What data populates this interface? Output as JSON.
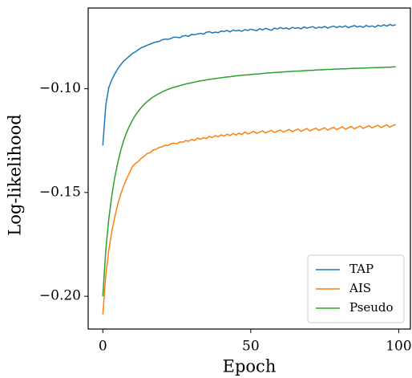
{
  "chart_data": {
    "type": "line",
    "xlabel": "Epoch",
    "ylabel": "Log-likelihood",
    "x": [
      0,
      1,
      2,
      3,
      4,
      5,
      6,
      7,
      8,
      9,
      10,
      11,
      12,
      13,
      14,
      15,
      16,
      17,
      18,
      19,
      20,
      21,
      22,
      23,
      24,
      25,
      26,
      27,
      28,
      29,
      30,
      31,
      32,
      33,
      34,
      35,
      36,
      37,
      38,
      39,
      40,
      41,
      42,
      43,
      44,
      45,
      46,
      47,
      48,
      49,
      50,
      51,
      52,
      53,
      54,
      55,
      56,
      57,
      58,
      59,
      60,
      61,
      62,
      63,
      64,
      65,
      66,
      67,
      68,
      69,
      70,
      71,
      72,
      73,
      74,
      75,
      76,
      77,
      78,
      79,
      80,
      81,
      82,
      83,
      84,
      85,
      86,
      87,
      88,
      89,
      90,
      91,
      92,
      93,
      94,
      95,
      96,
      97,
      98,
      99
    ],
    "series": [
      {
        "name": "TAP",
        "color": "#1f77b4",
        "values": [
          -0.1273,
          -0.108,
          -0.0995,
          -0.0958,
          -0.093,
          -0.0905,
          -0.0885,
          -0.0868,
          -0.0855,
          -0.0843,
          -0.083,
          -0.0822,
          -0.0812,
          -0.0802,
          -0.0797,
          -0.079,
          -0.0785,
          -0.0779,
          -0.0775,
          -0.0772,
          -0.0764,
          -0.0761,
          -0.0762,
          -0.0758,
          -0.0751,
          -0.0752,
          -0.0754,
          -0.0746,
          -0.0744,
          -0.0747,
          -0.0738,
          -0.074,
          -0.0736,
          -0.0733,
          -0.0737,
          -0.0728,
          -0.0725,
          -0.0731,
          -0.0727,
          -0.073,
          -0.0722,
          -0.0724,
          -0.0719,
          -0.0726,
          -0.0717,
          -0.0721,
          -0.0718,
          -0.0723,
          -0.0715,
          -0.0719,
          -0.0713,
          -0.0717,
          -0.072,
          -0.0711,
          -0.0716,
          -0.0709,
          -0.0714,
          -0.0718,
          -0.0708,
          -0.0712,
          -0.0705,
          -0.0711,
          -0.0707,
          -0.0713,
          -0.0704,
          -0.0709,
          -0.0706,
          -0.0711,
          -0.0702,
          -0.0708,
          -0.0704,
          -0.0701,
          -0.0709,
          -0.0703,
          -0.0706,
          -0.07,
          -0.0708,
          -0.0702,
          -0.0698,
          -0.0705,
          -0.0699,
          -0.0703,
          -0.0697,
          -0.0706,
          -0.07,
          -0.0696,
          -0.0702,
          -0.0698,
          -0.0704,
          -0.0695,
          -0.0701,
          -0.0697,
          -0.0703,
          -0.0694,
          -0.0699,
          -0.0692,
          -0.0698,
          -0.069,
          -0.0696,
          -0.0691
        ]
      },
      {
        "name": "AIS",
        "color": "#ff7f0e",
        "values": [
          -0.2088,
          -0.19,
          -0.178,
          -0.169,
          -0.162,
          -0.156,
          -0.151,
          -0.147,
          -0.1435,
          -0.1405,
          -0.1375,
          -0.136,
          -0.135,
          -0.1335,
          -0.1325,
          -0.1312,
          -0.1308,
          -0.1295,
          -0.1292,
          -0.1283,
          -0.128,
          -0.1272,
          -0.1274,
          -0.1265,
          -0.1262,
          -0.1266,
          -0.1256,
          -0.1258,
          -0.125,
          -0.1253,
          -0.1244,
          -0.1249,
          -0.1238,
          -0.1243,
          -0.1236,
          -0.124,
          -0.123,
          -0.1235,
          -0.1226,
          -0.1232,
          -0.1222,
          -0.1228,
          -0.1219,
          -0.1225,
          -0.1216,
          -0.1223,
          -0.1214,
          -0.1221,
          -0.1208,
          -0.1218,
          -0.1212,
          -0.1205,
          -0.1215,
          -0.1209,
          -0.1203,
          -0.1213,
          -0.1206,
          -0.1201,
          -0.1211,
          -0.1204,
          -0.1199,
          -0.1209,
          -0.1202,
          -0.1196,
          -0.1207,
          -0.12,
          -0.1194,
          -0.1205,
          -0.1198,
          -0.1192,
          -0.1203,
          -0.1196,
          -0.119,
          -0.1201,
          -0.1194,
          -0.1188,
          -0.1199,
          -0.1192,
          -0.1186,
          -0.1197,
          -0.119,
          -0.1184,
          -0.1195,
          -0.1188,
          -0.1182,
          -0.1193,
          -0.1186,
          -0.118,
          -0.1191,
          -0.1184,
          -0.1178,
          -0.1189,
          -0.1182,
          -0.1176,
          -0.1187,
          -0.118,
          -0.1174,
          -0.1185,
          -0.1178,
          -0.1172
        ]
      },
      {
        "name": "Pseudo",
        "color": "#2ca02c",
        "values": [
          -0.2,
          -0.178,
          -0.163,
          -0.152,
          -0.143,
          -0.136,
          -0.13,
          -0.1252,
          -0.1212,
          -0.118,
          -0.1152,
          -0.1128,
          -0.1108,
          -0.109,
          -0.1075,
          -0.1062,
          -0.105,
          -0.104,
          -0.1031,
          -0.1023,
          -0.1016,
          -0.1009,
          -0.1003,
          -0.0998,
          -0.0993,
          -0.0989,
          -0.0985,
          -0.0981,
          -0.0977,
          -0.0974,
          -0.0971,
          -0.0968,
          -0.0965,
          -0.0962,
          -0.096,
          -0.0957,
          -0.0955,
          -0.0953,
          -0.0951,
          -0.0949,
          -0.0947,
          -0.0945,
          -0.0943,
          -0.0942,
          -0.094,
          -0.0938,
          -0.0937,
          -0.0935,
          -0.0934,
          -0.0933,
          -0.0931,
          -0.093,
          -0.0929,
          -0.0928,
          -0.0926,
          -0.0925,
          -0.0924,
          -0.0923,
          -0.0922,
          -0.0921,
          -0.092,
          -0.0919,
          -0.0918,
          -0.0917,
          -0.0916,
          -0.0915,
          -0.0915,
          -0.0914,
          -0.0913,
          -0.0912,
          -0.0911,
          -0.0911,
          -0.091,
          -0.0909,
          -0.0909,
          -0.0908,
          -0.0907,
          -0.0907,
          -0.0906,
          -0.0905,
          -0.0905,
          -0.0904,
          -0.0904,
          -0.0903,
          -0.0902,
          -0.0902,
          -0.0901,
          -0.0901,
          -0.09,
          -0.09,
          -0.0899,
          -0.0899,
          -0.0898,
          -0.0898,
          -0.0897,
          -0.0897,
          -0.0896,
          -0.0896,
          -0.0895,
          -0.0895
        ]
      }
    ],
    "xlim": [
      -4.95,
      103.95
    ],
    "xticks": [
      0,
      50,
      100
    ],
    "ylim": [
      -0.2158,
      -0.0611
    ],
    "yticks": [
      {
        "value": -0.2,
        "label": "−0.20"
      },
      {
        "value": -0.15,
        "label": "−0.15"
      },
      {
        "value": -0.1,
        "label": "−0.10"
      }
    ],
    "legend": "lower right",
    "grid": false
  }
}
